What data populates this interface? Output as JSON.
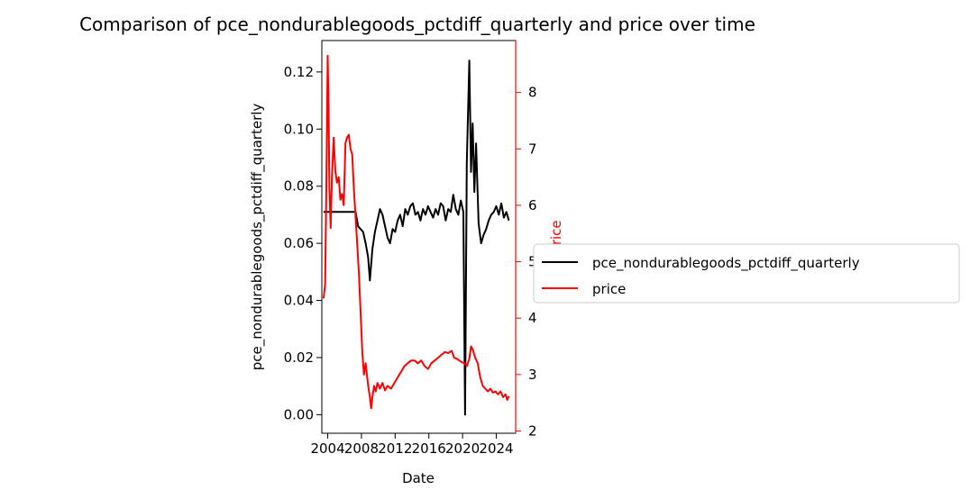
{
  "chart_data": {
    "type": "line",
    "title": "Comparison of pce_nondurablegoods_pctdiff_quarterly and price over time",
    "xlabel": "Date",
    "ylabel_left": "pce_nondurablegoods_pctdiff_quarterly",
    "ylabel_right": "price",
    "x_ticks": [
      "2004",
      "2008",
      "2012",
      "2016",
      "2020",
      "2024"
    ],
    "x_range": [
      2003.3,
      2026.3
    ],
    "ylim_left": [
      -0.0065,
      0.131
    ],
    "yticks_left": [
      "0.00",
      "0.02",
      "0.04",
      "0.06",
      "0.08",
      "0.10",
      "0.12"
    ],
    "ylim_right": [
      1.96,
      8.92
    ],
    "yticks_right": [
      "2",
      "3",
      "4",
      "5",
      "6",
      "7",
      "8"
    ],
    "right_axis_color": "#ff0000",
    "grid": false,
    "legend_position": "outside-right",
    "series": [
      {
        "name": "pce_nondurablegoods_pctdiff_quarterly",
        "axis": "left",
        "color": "#000000",
        "points": [
          [
            2003.5,
            0.071
          ],
          [
            2004.5,
            0.071
          ],
          [
            2005.5,
            0.071
          ],
          [
            2006.5,
            0.071
          ],
          [
            2007.3,
            0.071
          ],
          [
            2007.6,
            0.066
          ],
          [
            2007.9,
            0.065
          ],
          [
            2008.2,
            0.064
          ],
          [
            2008.5,
            0.06
          ],
          [
            2008.8,
            0.055
          ],
          [
            2009.0,
            0.047
          ],
          [
            2009.3,
            0.058
          ],
          [
            2009.6,
            0.064
          ],
          [
            2009.9,
            0.068
          ],
          [
            2010.2,
            0.072
          ],
          [
            2010.5,
            0.07
          ],
          [
            2010.8,
            0.066
          ],
          [
            2011.1,
            0.062
          ],
          [
            2011.4,
            0.06
          ],
          [
            2011.7,
            0.065
          ],
          [
            2012.0,
            0.064
          ],
          [
            2012.3,
            0.068
          ],
          [
            2012.6,
            0.07
          ],
          [
            2012.9,
            0.066
          ],
          [
            2013.2,
            0.072
          ],
          [
            2013.5,
            0.07
          ],
          [
            2013.8,
            0.073
          ],
          [
            2014.1,
            0.074
          ],
          [
            2014.4,
            0.07
          ],
          [
            2014.7,
            0.071
          ],
          [
            2015.0,
            0.068
          ],
          [
            2015.3,
            0.072
          ],
          [
            2015.6,
            0.07
          ],
          [
            2015.9,
            0.073
          ],
          [
            2016.2,
            0.071
          ],
          [
            2016.5,
            0.069
          ],
          [
            2016.8,
            0.072
          ],
          [
            2017.1,
            0.07
          ],
          [
            2017.4,
            0.074
          ],
          [
            2017.7,
            0.073
          ],
          [
            2018.0,
            0.068
          ],
          [
            2018.3,
            0.072
          ],
          [
            2018.6,
            0.071
          ],
          [
            2018.9,
            0.077
          ],
          [
            2019.2,
            0.072
          ],
          [
            2019.5,
            0.07
          ],
          [
            2019.8,
            0.075
          ],
          [
            2020.1,
            0.071
          ],
          [
            2020.3,
            0.0
          ],
          [
            2020.5,
            0.088
          ],
          [
            2020.8,
            0.124
          ],
          [
            2021.0,
            0.085
          ],
          [
            2021.2,
            0.102
          ],
          [
            2021.4,
            0.078
          ],
          [
            2021.6,
            0.095
          ],
          [
            2021.9,
            0.067
          ],
          [
            2022.2,
            0.06
          ],
          [
            2022.5,
            0.063
          ],
          [
            2022.8,
            0.065
          ],
          [
            2023.1,
            0.068
          ],
          [
            2023.4,
            0.07
          ],
          [
            2023.7,
            0.071
          ],
          [
            2024.0,
            0.073
          ],
          [
            2024.3,
            0.07
          ],
          [
            2024.6,
            0.074
          ],
          [
            2024.9,
            0.069
          ],
          [
            2025.2,
            0.071
          ],
          [
            2025.5,
            0.068
          ]
        ]
      },
      {
        "name": "price",
        "axis": "right",
        "color": "#ff0000",
        "points": [
          [
            2003.5,
            4.35
          ],
          [
            2003.7,
            4.6
          ],
          [
            2003.85,
            6.5
          ],
          [
            2004.0,
            8.65
          ],
          [
            2004.1,
            7.7
          ],
          [
            2004.2,
            6.3
          ],
          [
            2004.35,
            5.6
          ],
          [
            2004.5,
            6.5
          ],
          [
            2004.7,
            7.2
          ],
          [
            2004.9,
            6.6
          ],
          [
            2005.1,
            6.4
          ],
          [
            2005.3,
            6.5
          ],
          [
            2005.5,
            6.1
          ],
          [
            2005.7,
            6.2
          ],
          [
            2005.9,
            6.0
          ],
          [
            2006.1,
            7.1
          ],
          [
            2006.3,
            7.2
          ],
          [
            2006.5,
            7.25
          ],
          [
            2006.7,
            7.0
          ],
          [
            2006.9,
            6.9
          ],
          [
            2007.1,
            6.3
          ],
          [
            2007.3,
            5.8
          ],
          [
            2007.5,
            5.3
          ],
          [
            2007.7,
            4.8
          ],
          [
            2007.9,
            4.1
          ],
          [
            2008.1,
            3.4
          ],
          [
            2008.3,
            3.0
          ],
          [
            2008.5,
            3.2
          ],
          [
            2008.8,
            2.8
          ],
          [
            2009.0,
            2.6
          ],
          [
            2009.15,
            2.4
          ],
          [
            2009.3,
            2.6
          ],
          [
            2009.5,
            2.8
          ],
          [
            2009.7,
            2.7
          ],
          [
            2009.9,
            2.85
          ],
          [
            2010.2,
            2.75
          ],
          [
            2010.5,
            2.85
          ],
          [
            2010.8,
            2.72
          ],
          [
            2011.1,
            2.8
          ],
          [
            2011.5,
            2.75
          ],
          [
            2011.9,
            2.85
          ],
          [
            2012.3,
            2.95
          ],
          [
            2012.7,
            3.05
          ],
          [
            2013.1,
            3.15
          ],
          [
            2013.5,
            3.2
          ],
          [
            2013.9,
            3.25
          ],
          [
            2014.3,
            3.25
          ],
          [
            2014.7,
            3.2
          ],
          [
            2015.1,
            3.25
          ],
          [
            2015.5,
            3.15
          ],
          [
            2015.9,
            3.1
          ],
          [
            2016.3,
            3.2
          ],
          [
            2016.7,
            3.25
          ],
          [
            2017.1,
            3.3
          ],
          [
            2017.5,
            3.35
          ],
          [
            2017.9,
            3.4
          ],
          [
            2018.3,
            3.38
          ],
          [
            2018.7,
            3.42
          ],
          [
            2019.0,
            3.3
          ],
          [
            2019.3,
            3.28
          ],
          [
            2019.6,
            3.25
          ],
          [
            2019.9,
            3.22
          ],
          [
            2020.2,
            3.2
          ],
          [
            2020.5,
            3.15
          ],
          [
            2020.8,
            3.28
          ],
          [
            2021.0,
            3.5
          ],
          [
            2021.2,
            3.45
          ],
          [
            2021.5,
            3.3
          ],
          [
            2021.8,
            3.2
          ],
          [
            2022.1,
            2.95
          ],
          [
            2022.4,
            2.8
          ],
          [
            2022.7,
            2.75
          ],
          [
            2023.0,
            2.7
          ],
          [
            2023.3,
            2.75
          ],
          [
            2023.6,
            2.68
          ],
          [
            2023.9,
            2.7
          ],
          [
            2024.2,
            2.65
          ],
          [
            2024.5,
            2.7
          ],
          [
            2024.8,
            2.6
          ],
          [
            2025.1,
            2.65
          ],
          [
            2025.3,
            2.55
          ],
          [
            2025.5,
            2.62
          ]
        ]
      }
    ]
  }
}
